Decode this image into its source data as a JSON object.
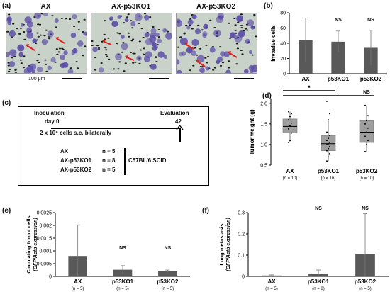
{
  "panel_a": {
    "label": "(a)",
    "titles": [
      "AX",
      "AX-p53KO1",
      "AX-p53KO2"
    ],
    "scale_text": "100 μm"
  },
  "panel_b": {
    "label": "(b)",
    "ns_labels": [
      "NS",
      "NS"
    ]
  },
  "panel_c": {
    "label": "(c)",
    "inoculation": "Inoculation",
    "evaluation": "Evaluation",
    "day0": "day 0",
    "day42": "42",
    "cells_line": "2 x 10⁶ cells s.c. bilaterally",
    "groups": [
      {
        "name": "AX",
        "n": "n = 5"
      },
      {
        "name": "AX-p53KO1",
        "n": "n = 8"
      },
      {
        "name": "AX-p53KO2",
        "n": "n = 5"
      }
    ],
    "strain": "C57BL/6 SCID"
  },
  "panel_d": {
    "label": "(d)",
    "star": "*",
    "ns": "NS"
  },
  "panel_e": {
    "label": "(e)",
    "ns_labels": [
      "NS",
      "NS"
    ]
  },
  "panel_f": {
    "label": "(f)",
    "ns_labels": [
      "NS",
      "NS"
    ]
  },
  "chart_data": [
    {
      "id": "b",
      "type": "bar",
      "categories": [
        "AX",
        "p53KO1",
        "p53KO2"
      ],
      "values": [
        44,
        42,
        34
      ],
      "errors": [
        29,
        14,
        23
      ],
      "ylabel": "Invasive cells",
      "ylim": [
        0,
        80
      ],
      "yticks": [
        0,
        20,
        40,
        60,
        80
      ],
      "grid": false
    },
    {
      "id": "d",
      "type": "box",
      "categories": [
        "AX",
        "p53KO1",
        "p53KO2"
      ],
      "n_labels": [
        "(n = 10)",
        "(n = 16)",
        "(n = 10)"
      ],
      "boxes": [
        {
          "q1": 1.28,
          "median": 1.44,
          "q3": 1.62,
          "whisker_low": 1.05,
          "whisker_high": 1.8
        },
        {
          "q1": 0.85,
          "median": 1.02,
          "q3": 1.22,
          "whisker_low": 0.6,
          "whisker_high": 1.6
        },
        {
          "q1": 1.05,
          "median": 1.3,
          "q3": 1.58,
          "whisker_low": 0.83,
          "whisker_high": 1.95
        }
      ],
      "points": [
        [
          1.05,
          1.1,
          1.28,
          1.38,
          1.45,
          1.52,
          1.6,
          1.68,
          1.75,
          1.8
        ],
        [
          0.6,
          0.7,
          0.78,
          0.85,
          0.9,
          0.95,
          1.0,
          1.02,
          1.05,
          1.1,
          1.15,
          1.22,
          1.3,
          1.6,
          1.75,
          2.05
        ],
        [
          0.83,
          1.0,
          1.1,
          1.2,
          1.3,
          1.4,
          1.5,
          1.58,
          1.7,
          1.95
        ]
      ],
      "ylabel": "Tumor weight (g)",
      "ylim": [
        0.5,
        2.1
      ],
      "yticks": [
        0.5,
        1.0,
        1.5,
        2.0
      ],
      "ytick_labels": [
        "0.5",
        "1.0",
        "1.5",
        "2.0"
      ]
    },
    {
      "id": "e",
      "type": "bar",
      "categories": [
        "AX",
        "p53KO1",
        "p53KO2"
      ],
      "n_labels": [
        "(n = 5)",
        "(n = 5)",
        "(n = 5)"
      ],
      "values": [
        0.0008,
        0.00026,
        0.0002
      ],
      "errors": [
        0.00122,
        0.00016,
        5e-05
      ],
      "ylabel_line1": "Circulating tumor cells",
      "ylabel_line2": "(GFP/Actb expression)",
      "ylim": [
        0,
        0.0025
      ],
      "yticks": [
        0,
        0.0005,
        0.001,
        0.0015,
        0.002,
        0.0025
      ],
      "ytick_labels": [
        "0",
        "0.0005",
        "0.001",
        "0.0015",
        "0.002",
        "0.0025"
      ]
    },
    {
      "id": "f",
      "type": "bar",
      "categories": [
        "AX",
        "p53KO1",
        "p53KO2"
      ],
      "n_labels": [
        "(n = 5)",
        "(n = 8)",
        "(n = 5)"
      ],
      "values": [
        0.004,
        0.01,
        0.105
      ],
      "errors": [
        0.003,
        0.02,
        0.19
      ],
      "ylabel_line1": "Lung metastasis",
      "ylabel_line2": "(GFP/Actb expression)",
      "ylim": [
        0,
        0.3
      ],
      "yticks": [
        0,
        0.1,
        0.2,
        0.3
      ],
      "ytick_labels": [
        "0",
        "0.1",
        "0.2",
        "0.3"
      ]
    }
  ],
  "colors": {
    "bar": "#595959",
    "box": "#9e9e9e",
    "micro_bg": "#c9d2c8",
    "cell": "#5a4aa8",
    "pore": "#1a1a1a",
    "arrow": "#e0201b"
  }
}
